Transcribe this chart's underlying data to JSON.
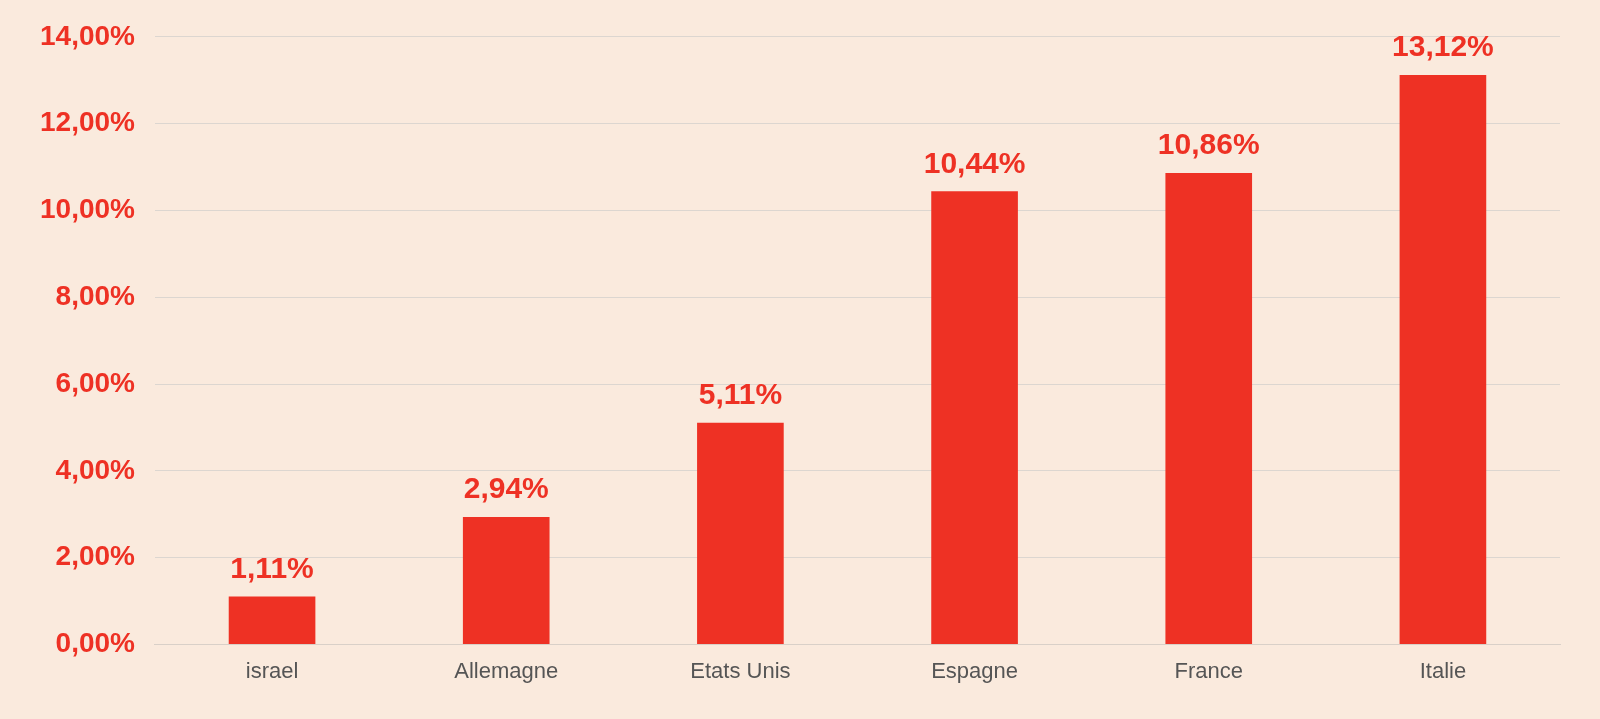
{
  "chart_data": {
    "type": "bar",
    "categories": [
      "israel",
      "Allemagne",
      "Etats Unis",
      "Espagne",
      "France",
      "Italie"
    ],
    "values": [
      1.11,
      2.94,
      5.11,
      10.44,
      10.86,
      13.12
    ],
    "value_labels": [
      "1,11%",
      "2,94%",
      "5,11%",
      "10,44%",
      "10,86%",
      "13,12%"
    ],
    "color": "#ee3124",
    "ylim": [
      0,
      14
    ],
    "yticks": [
      {
        "value": 0,
        "label": "0,00%"
      },
      {
        "value": 2,
        "label": "2,00%"
      },
      {
        "value": 4,
        "label": "4,00%"
      },
      {
        "value": 6,
        "label": "6,00%"
      },
      {
        "value": 8,
        "label": "8,00%"
      },
      {
        "value": 10,
        "label": "10,00%"
      },
      {
        "value": 12,
        "label": "12,00%"
      },
      {
        "value": 14,
        "label": "14,00%"
      }
    ],
    "grid": "y"
  }
}
